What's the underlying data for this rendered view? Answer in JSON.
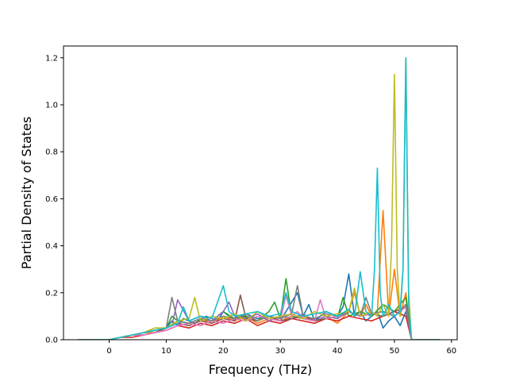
{
  "chart_data": {
    "type": "line",
    "title": "",
    "xlabel": "Frequency (THz)",
    "ylabel": "Partial Density of States",
    "xlim": [
      -8,
      61
    ],
    "ylim": [
      0,
      1.25
    ],
    "x_ticks": [
      0,
      10,
      20,
      30,
      40,
      50,
      60
    ],
    "y_ticks": [
      0.0,
      0.2,
      0.4,
      0.6,
      0.8,
      1.0,
      1.2
    ],
    "x_tick_labels": [
      "0",
      "10",
      "20",
      "30",
      "40",
      "50",
      "60"
    ],
    "y_tick_labels": [
      "0.0",
      "0.2",
      "0.4",
      "0.6",
      "0.8",
      "1.0",
      "1.2"
    ],
    "grid": false,
    "legend": "none",
    "series": [
      {
        "color": "#1f77b4",
        "x": [
          -5.5,
          0,
          2,
          4,
          6,
          8,
          10,
          11,
          12,
          13,
          15,
          17,
          19,
          20,
          22,
          24,
          26,
          28,
          30,
          31,
          33,
          34,
          35,
          36,
          38,
          40,
          41,
          42,
          43,
          44,
          45,
          46,
          47,
          48,
          49,
          50,
          51,
          52,
          53,
          58
        ],
        "values": [
          0,
          0,
          0.01,
          0.02,
          0.02,
          0.03,
          0.05,
          0.08,
          0.06,
          0.09,
          0.07,
          0.1,
          0.08,
          0.12,
          0.08,
          0.11,
          0.09,
          0.1,
          0.08,
          0.12,
          0.2,
          0.1,
          0.15,
          0.08,
          0.12,
          0.1,
          0.14,
          0.28,
          0.1,
          0.12,
          0.08,
          0.1,
          0.12,
          0.05,
          0.08,
          0.1,
          0.06,
          0.12,
          0,
          0
        ]
      },
      {
        "color": "#ff7f0e",
        "x": [
          -5.5,
          0,
          2,
          4,
          6,
          8,
          10,
          11,
          12,
          14,
          16,
          18,
          20,
          22,
          24,
          26,
          28,
          30,
          32,
          34,
          36,
          38,
          40,
          42,
          43,
          44,
          45,
          46,
          47,
          48,
          49,
          50,
          51,
          52,
          53,
          58
        ],
        "values": [
          0,
          0,
          0.01,
          0.02,
          0.03,
          0.03,
          0.05,
          0.06,
          0.08,
          0.07,
          0.09,
          0.07,
          0.1,
          0.08,
          0.1,
          0.07,
          0.09,
          0.08,
          0.1,
          0.09,
          0.08,
          0.1,
          0.07,
          0.12,
          0.2,
          0.1,
          0.15,
          0.1,
          0.12,
          0.55,
          0.1,
          0.3,
          0.1,
          0.2,
          0,
          0
        ]
      },
      {
        "color": "#2ca02c",
        "x": [
          -5.5,
          0,
          2,
          4,
          6,
          8,
          10,
          11,
          12,
          14,
          16,
          18,
          20,
          22,
          24,
          26,
          28,
          29,
          30,
          31,
          32,
          34,
          36,
          38,
          40,
          41,
          42,
          44,
          46,
          48,
          50,
          52,
          53,
          58
        ],
        "values": [
          0,
          0,
          0.01,
          0.02,
          0.03,
          0.04,
          0.05,
          0.1,
          0.08,
          0.07,
          0.09,
          0.08,
          0.12,
          0.09,
          0.1,
          0.08,
          0.12,
          0.16,
          0.09,
          0.26,
          0.1,
          0.09,
          0.08,
          0.1,
          0.09,
          0.18,
          0.1,
          0.12,
          0.1,
          0.15,
          0.12,
          0.18,
          0,
          0
        ]
      },
      {
        "color": "#d62728",
        "x": [
          -5.5,
          0,
          2,
          4,
          6,
          8,
          10,
          12,
          14,
          16,
          18,
          20,
          22,
          24,
          26,
          28,
          30,
          32,
          34,
          36,
          38,
          40,
          42,
          44,
          46,
          48,
          50,
          52,
          53,
          58
        ],
        "values": [
          0,
          0,
          0.01,
          0.01,
          0.02,
          0.03,
          0.04,
          0.06,
          0.05,
          0.07,
          0.06,
          0.08,
          0.07,
          0.09,
          0.06,
          0.08,
          0.07,
          0.09,
          0.08,
          0.07,
          0.09,
          0.08,
          0.1,
          0.09,
          0.08,
          0.1,
          0.12,
          0.1,
          0,
          0
        ]
      },
      {
        "color": "#9467bd",
        "x": [
          -5.5,
          0,
          2,
          4,
          6,
          8,
          10,
          11,
          12,
          14,
          16,
          18,
          20,
          21,
          22,
          24,
          26,
          28,
          30,
          32,
          34,
          36,
          38,
          40,
          42,
          44,
          46,
          48,
          50,
          52,
          53,
          58
        ],
        "values": [
          0,
          0,
          0.01,
          0.02,
          0.03,
          0.04,
          0.05,
          0.06,
          0.17,
          0.08,
          0.1,
          0.08,
          0.12,
          0.16,
          0.1,
          0.09,
          0.11,
          0.08,
          0.1,
          0.09,
          0.11,
          0.08,
          0.1,
          0.09,
          0.12,
          0.1,
          0.11,
          0.12,
          0.1,
          0.14,
          0,
          0
        ]
      },
      {
        "color": "#8c564b",
        "x": [
          -5.5,
          0,
          2,
          4,
          6,
          8,
          10,
          12,
          14,
          16,
          18,
          20,
          22,
          23,
          24,
          26,
          28,
          30,
          32,
          34,
          36,
          38,
          40,
          42,
          44,
          46,
          48,
          50,
          52,
          53,
          58
        ],
        "values": [
          0,
          0,
          0.01,
          0.02,
          0.02,
          0.03,
          0.05,
          0.07,
          0.06,
          0.08,
          0.07,
          0.09,
          0.08,
          0.19,
          0.09,
          0.08,
          0.1,
          0.08,
          0.09,
          0.1,
          0.08,
          0.09,
          0.1,
          0.12,
          0.1,
          0.11,
          0.1,
          0.12,
          0.14,
          0,
          0
        ]
      },
      {
        "color": "#e377c2",
        "x": [
          -5.5,
          0,
          2,
          4,
          6,
          8,
          10,
          12,
          14,
          16,
          18,
          20,
          22,
          24,
          26,
          28,
          30,
          31,
          32,
          33,
          34,
          36,
          37,
          38,
          40,
          42,
          44,
          46,
          48,
          50,
          52,
          53,
          58
        ],
        "values": [
          0,
          0,
          0.01,
          0.02,
          0.02,
          0.03,
          0.04,
          0.06,
          0.07,
          0.06,
          0.08,
          0.07,
          0.09,
          0.08,
          0.1,
          0.09,
          0.08,
          0.19,
          0.1,
          0.12,
          0.09,
          0.08,
          0.17,
          0.09,
          0.1,
          0.12,
          0.1,
          0.11,
          0.12,
          0.1,
          0.14,
          0,
          0
        ]
      },
      {
        "color": "#7f7f7f",
        "x": [
          -5.5,
          0,
          2,
          4,
          6,
          8,
          10,
          11,
          12,
          14,
          16,
          18,
          20,
          22,
          24,
          26,
          28,
          30,
          32,
          33,
          34,
          36,
          38,
          40,
          42,
          44,
          45,
          46,
          48,
          50,
          52,
          53,
          58
        ],
        "values": [
          0,
          0,
          0.01,
          0.02,
          0.03,
          0.04,
          0.05,
          0.18,
          0.08,
          0.07,
          0.09,
          0.08,
          0.1,
          0.09,
          0.11,
          0.08,
          0.1,
          0.09,
          0.11,
          0.23,
          0.1,
          0.09,
          0.11,
          0.1,
          0.12,
          0.1,
          0.18,
          0.11,
          0.12,
          0.1,
          0.15,
          0,
          0
        ]
      },
      {
        "color": "#bcbd22",
        "x": [
          -5.5,
          0,
          2,
          4,
          6,
          8,
          10,
          12,
          14,
          15,
          16,
          18,
          20,
          22,
          24,
          26,
          28,
          30,
          32,
          34,
          36,
          38,
          40,
          42,
          43,
          44,
          46,
          47,
          48,
          49,
          49.5,
          50,
          50.5,
          51,
          51.5,
          52,
          52.5,
          53,
          58
        ],
        "values": [
          0,
          0,
          0.01,
          0.02,
          0.03,
          0.05,
          0.05,
          0.08,
          0.09,
          0.18,
          0.08,
          0.1,
          0.09,
          0.11,
          0.08,
          0.12,
          0.09,
          0.1,
          0.11,
          0.09,
          0.12,
          0.1,
          0.11,
          0.12,
          0.22,
          0.1,
          0.12,
          0.1,
          0.15,
          0.1,
          0.4,
          1.13,
          0.3,
          0.1,
          0.3,
          1.2,
          0.2,
          0,
          0
        ]
      },
      {
        "color": "#17becf",
        "x": [
          -5.5,
          0,
          2,
          4,
          6,
          8,
          10,
          12,
          13,
          14,
          16,
          18,
          20,
          21,
          22,
          24,
          26,
          28,
          30,
          31,
          32,
          34,
          36,
          38,
          40,
          42,
          43,
          44,
          45,
          46,
          46.5,
          47,
          47.5,
          48,
          49,
          50,
          51,
          51.5,
          52,
          52.5,
          53,
          58
        ],
        "values": [
          0,
          0,
          0.01,
          0.02,
          0.03,
          0.04,
          0.05,
          0.07,
          0.14,
          0.08,
          0.1,
          0.09,
          0.23,
          0.12,
          0.1,
          0.11,
          0.12,
          0.1,
          0.11,
          0.2,
          0.12,
          0.1,
          0.11,
          0.12,
          0.1,
          0.13,
          0.1,
          0.29,
          0.12,
          0.1,
          0.3,
          0.73,
          0.2,
          0.1,
          0.15,
          0.1,
          0.12,
          0.3,
          1.2,
          0.15,
          0,
          0
        ]
      }
    ]
  }
}
